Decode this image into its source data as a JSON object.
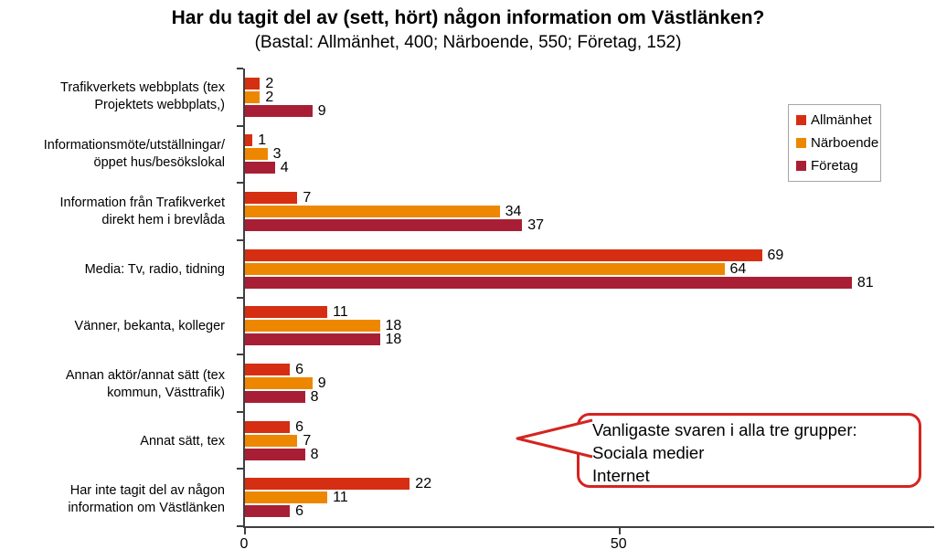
{
  "chart_data": {
    "type": "bar",
    "orientation": "horizontal",
    "title": "Har du tagit del av (sett, hört) någon information om Västlänken?",
    "subtitle": "(Bastal: Allmänhet, 400; Närboende, 550; Företag, 152)",
    "categories": [
      "Trafikverkets webbplats (tex\nProjektets webbplats,)",
      "Informationsmöte/utställningar/\nöppet hus/besökslokal",
      "Information från Trafikverket\ndirekt hem i brevlåda",
      "Media: Tv, radio, tidning",
      "Vänner, bekanta, kolleger",
      "Annan aktör/annat sätt (tex\nkommun, Västtrafik)",
      "Annat sätt, tex",
      "Har inte tagit del av någon\ninformation om Västlänken"
    ],
    "series": [
      {
        "name": "Allmänhet",
        "color": "#d52e12",
        "values": [
          2,
          1,
          7,
          69,
          11,
          6,
          6,
          22
        ]
      },
      {
        "name": "Närboende",
        "color": "#ee8700",
        "values": [
          2,
          3,
          34,
          64,
          18,
          9,
          7,
          11
        ]
      },
      {
        "name": "Företag",
        "color": "#a81f35",
        "values": [
          9,
          4,
          37,
          81,
          18,
          8,
          8,
          6
        ]
      }
    ],
    "xlim": [
      0,
      92
    ],
    "x_ticks": [
      0,
      50
    ],
    "grid": false,
    "legend_position": "top-right",
    "value_labels": true
  },
  "callout": {
    "text": "Vanligaste svaren i alla tre grupper:\nSociala medier\nInternet",
    "border_color": "#d42420"
  },
  "colors": {
    "axis": "#3f3f3f",
    "legend_border": "#a6a6a6",
    "background": "#ffffff",
    "text": "#000000"
  }
}
